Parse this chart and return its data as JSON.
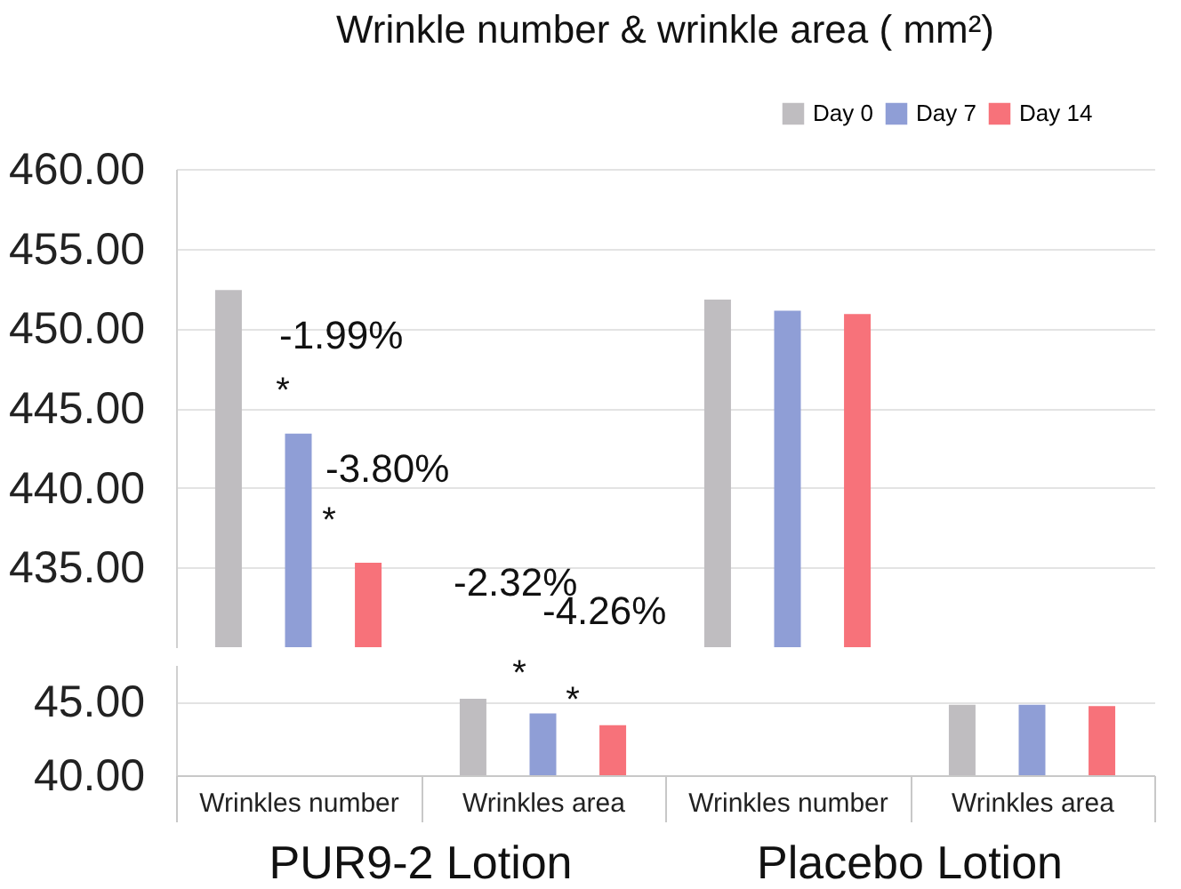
{
  "chart_data": [
    {
      "type": "bar",
      "title": "Wrinkle number & wrinkle area ( mm²)",
      "categories": [
        null,
        null,
        null,
        null
      ],
      "series": [
        {
          "name": "Day 0",
          "color": "#bfbdc0",
          "values": [
            452.4,
            null,
            451.8,
            null
          ]
        },
        {
          "name": "Day 7",
          "color": "#8f9ed6",
          "values": [
            443.4,
            null,
            451.1,
            null
          ]
        },
        {
          "name": "Day 14",
          "color": "#f7727a",
          "values": [
            435.3,
            null,
            450.9,
            null
          ]
        }
      ],
      "ylim": [
        430,
        460
      ],
      "yticks": [
        {
          "value": 435,
          "label": "435.00"
        },
        {
          "value": 440,
          "label": "440.00"
        },
        {
          "value": 445,
          "label": "445.00"
        },
        {
          "value": 450,
          "label": "450.00"
        },
        {
          "value": 455,
          "label": "455.00"
        },
        {
          "value": 460,
          "label": "460.00"
        }
      ],
      "grid": "y",
      "legend": "top right",
      "tick_labels": "y",
      "annotations": [
        "-1.99%",
        "-3.80%",
        "-2.32%",
        "-4.26%",
        "*",
        "*"
      ]
    },
    {
      "type": "bar",
      "categories": [
        "Wrinkles number",
        "Wrinkles area",
        "Wrinkles number",
        "Wrinkles area"
      ],
      "series": [
        {
          "color": "#bfbdc0",
          "values": [
            null,
            45.2,
            null,
            44.8
          ]
        },
        {
          "color": "#8f9ed6",
          "values": [
            null,
            44.2,
            null,
            44.8
          ]
        },
        {
          "color": "#f7727a",
          "values": [
            null,
            43.4,
            null,
            44.7
          ]
        }
      ],
      "ylim": [
        40,
        47.5
      ],
      "yticks": [
        {
          "value": 40,
          "label": "40.00"
        },
        {
          "value": 45,
          "label": "45.00"
        }
      ],
      "grid": "y",
      "annotations": [
        "*",
        "*",
        "PUR9-2 Lotion",
        "Placebo Lotion"
      ]
    }
  ]
}
